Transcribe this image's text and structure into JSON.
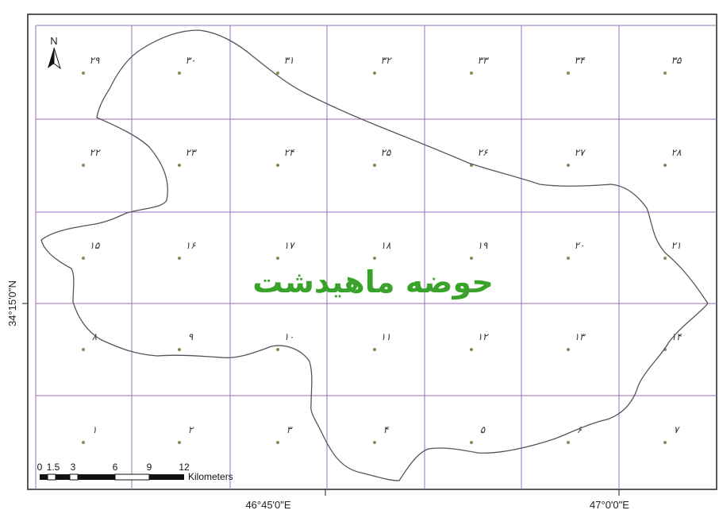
{
  "title": "حوضه ماهیدشت",
  "colors": {
    "grid": "#9b6fbf",
    "boundary": "#555555",
    "title": "#39a22a",
    "frame": "#222222",
    "point": "#8a8a5a"
  },
  "north_arrow": {
    "label": "N",
    "icon": "north-arrow-icon"
  },
  "axes": {
    "x_ticks": [
      "46°45'0\"E",
      "47°0'0\"E"
    ],
    "y_ticks": [
      "34°15'0\"N"
    ]
  },
  "scale_bar": {
    "labels": [
      "0",
      "1.5",
      "3",
      "6",
      "9",
      "12"
    ],
    "unit": "Kilometers"
  },
  "grid": {
    "rows": [
      [
        "۲۹",
        "۳۰",
        "۳۱",
        "۳۲",
        "۳۳",
        "۳۴",
        "۳۵"
      ],
      [
        "۲۲",
        "۲۳",
        "۲۴",
        "۲۵",
        "۲۶",
        "۲۷",
        "۲۸"
      ],
      [
        "۱۵",
        "۱۶",
        "۱۷",
        "۱۸",
        "۱۹",
        "۲۰",
        "۲۱"
      ],
      [
        "۸",
        "۹",
        "۱۰",
        "۱۱",
        "۱۲",
        "۱۳",
        "۱۴"
      ],
      [
        "۱",
        "۲",
        "۳",
        "۴",
        "۵",
        "۶",
        "۷"
      ]
    ]
  }
}
